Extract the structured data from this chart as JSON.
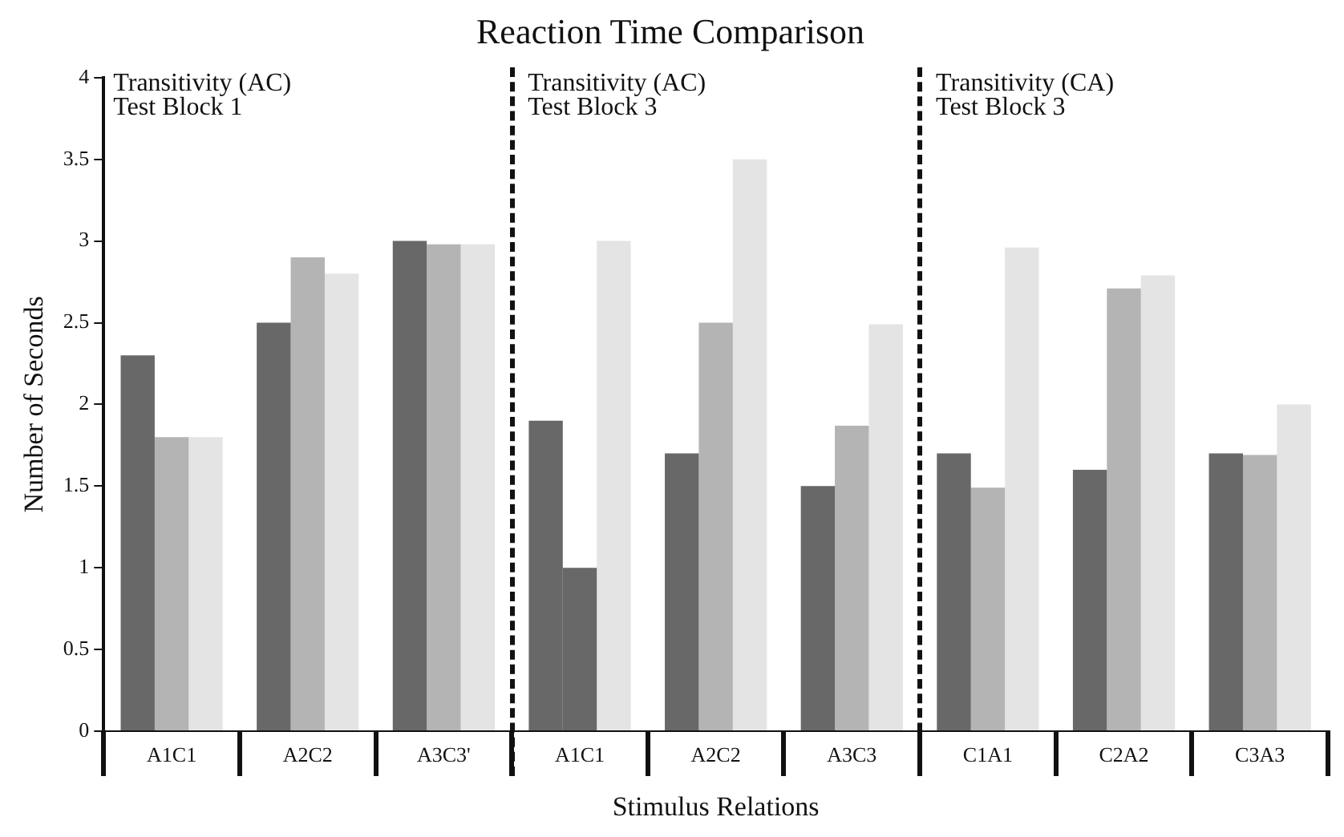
{
  "chart_data": {
    "type": "bar",
    "title": "Reaction Time Comparison",
    "xlabel": "Stimulus Relations",
    "ylabel": "Number of Seconds",
    "categories": [
      "A1C1",
      "A2C2",
      "A3C3'",
      "A1C1",
      "A2C2",
      "A3C3",
      "C1A1",
      "C2A2",
      "C3A3"
    ],
    "series": [
      {
        "color": "#686868",
        "values": [
          2.3,
          2.5,
          3,
          1.9,
          1.7,
          1.5,
          1.7,
          1.6,
          1.7
        ]
      },
      {
        "colors": [
          "#b4b4b4",
          "#b4b4b4",
          "#b4b4b4",
          "#686868",
          "#b4b4b4",
          "#b4b4b4",
          "#b4b4b4",
          "#b4b4b4",
          "#b4b4b4"
        ],
        "values": [
          1.8,
          2.9,
          2.98,
          1.0,
          2.5,
          1.87,
          1.49,
          2.71,
          1.69
        ]
      },
      {
        "color": "#e4e4e4",
        "values": [
          1.8,
          2.8,
          2.98,
          3.0,
          3.5,
          2.49,
          2.96,
          2.79,
          2.0
        ]
      }
    ],
    "ylim": [
      0,
      4
    ],
    "yticks": [
      0,
      0.5,
      1,
      1.5,
      2,
      2.5,
      3,
      3.5,
      4
    ],
    "grid": false,
    "legend": false,
    "annotations": [
      "Transitivity (AC)\nTest Block 1",
      "Transitivity (AC)\nTest Block 3",
      "Transitivity (CA)\nTest Block 3"
    ]
  }
}
